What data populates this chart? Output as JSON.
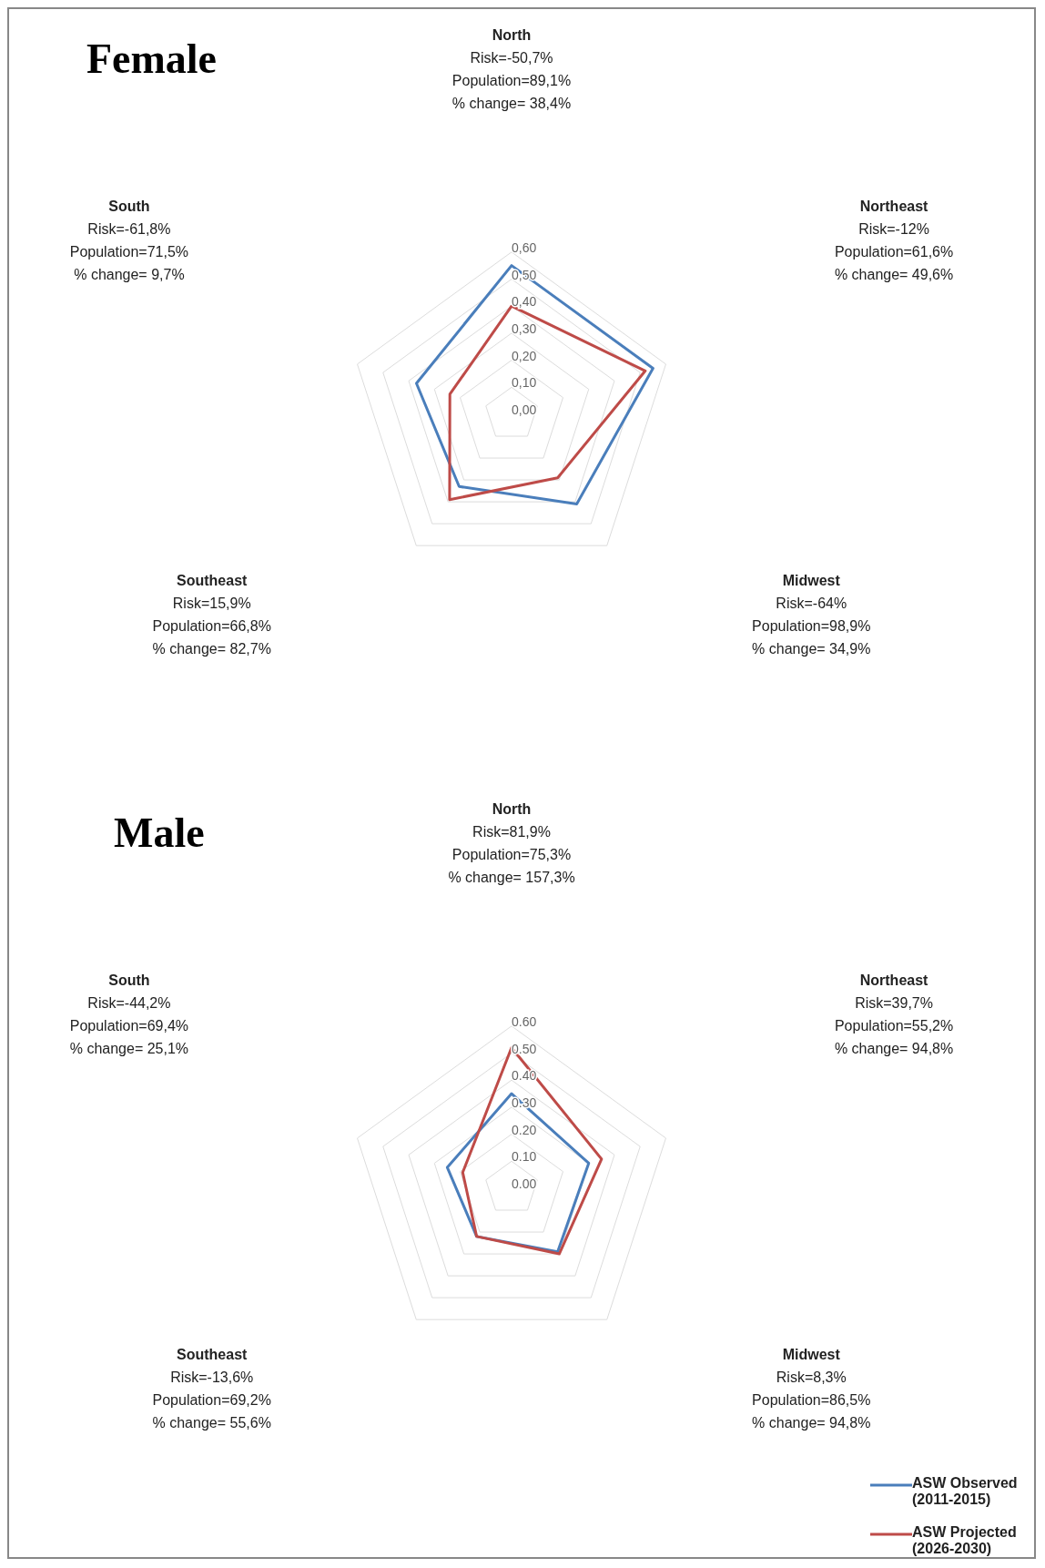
{
  "chart_data": [
    {
      "type": "radar",
      "title": "Female",
      "categories": [
        "North",
        "Northeast",
        "Midwest",
        "Southeast",
        "South"
      ],
      "annotations": [
        "Risk=-50,7%\nPopulation=89,1%\n% change= 38,4%",
        "Risk=-12%\nPopulation=61,6%\n% change= 49,6%",
        "Risk=-64%\nPopulation=98,9%\n% change= 34,9%",
        "Risk=15,9%\nPopulation=66,8%\n% change= 82,7%",
        "Risk=-61,8%\nPopulation=71,5%\n% change= 9,7%"
      ],
      "series": [
        {
          "color": "#4a7ebb",
          "values": [
            0.55,
            0.55,
            0.41,
            0.33,
            0.37
          ]
        },
        {
          "color": "#be4b48",
          "values": [
            0.4,
            0.52,
            0.29,
            0.39,
            0.24
          ]
        }
      ],
      "ylim": [
        0,
        0.6
      ],
      "yticks": [
        {
          "value": 0,
          "label": "0,00"
        },
        {
          "value": 0.1,
          "label": "0,10"
        },
        {
          "value": 0.2,
          "label": "0,20"
        },
        {
          "value": 0.3,
          "label": "0,30"
        },
        {
          "value": 0.4,
          "label": "0,40"
        },
        {
          "value": 0.5,
          "label": "0,50"
        },
        {
          "value": 0.6,
          "label": "0,60"
        }
      ],
      "grid": true,
      "legend": false,
      "marker": "none",
      "line_style": "solid"
    },
    {
      "type": "radar",
      "title": "Male",
      "categories": [
        "North",
        "Northeast",
        "Midwest",
        "Southeast",
        "South"
      ],
      "annotations": [
        "Risk=81,9%\nPopulation=75,3%\n% change= 157,3%",
        "Risk=39,7%\nPopulation=55,2%\n% change= 94,8%",
        "Risk=8,3%\nPopulation=86,5%\n% change= 94,8%",
        "Risk=-13,6%\nPopulation=69,2%\n% change= 55,6%",
        "Risk=-44,2%\nPopulation=69,4%\n% change= 25,1%"
      ],
      "series": [
        {
          "name": "ASW Observed (2011-2015)",
          "color": "#4a7ebb",
          "values": [
            0.35,
            0.3,
            0.29,
            0.22,
            0.25
          ]
        },
        {
          "name": "ASW Projected (2026-2030)",
          "color": "#be4b48",
          "values": [
            0.52,
            0.35,
            0.3,
            0.22,
            0.19
          ]
        }
      ],
      "ylim": [
        0,
        0.6
      ],
      "yticks": [
        {
          "value": 0,
          "label": "0.00"
        },
        {
          "value": 0.1,
          "label": "0.10"
        },
        {
          "value": 0.2,
          "label": "0.20"
        },
        {
          "value": 0.3,
          "label": "0.30"
        },
        {
          "value": 0.4,
          "label": "0.40"
        },
        {
          "value": 0.5,
          "label": "0.50"
        },
        {
          "value": 0.6,
          "label": "0.60"
        }
      ],
      "grid": true,
      "legend": "bottom right",
      "marker": "none",
      "line_style": "solid"
    }
  ]
}
